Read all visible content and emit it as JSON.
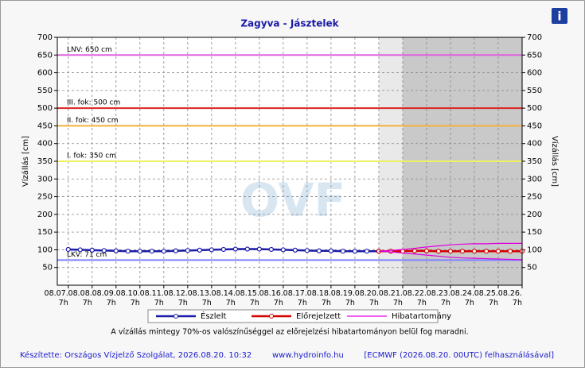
{
  "chart_data": {
    "type": "line",
    "title": "Zagyva - Jásztelek",
    "ylabel": "Vízállás [cm]",
    "y2label": "Vízállás [cm]",
    "watermark": "OVF",
    "x": [
      "08.07. 7h",
      "08.07. 19h",
      "08.08. 7h",
      "08.08. 19h",
      "08.09. 7h",
      "08.09. 19h",
      "08.10. 7h",
      "08.10. 19h",
      "08.11. 7h",
      "08.11. 19h",
      "08.12. 7h",
      "08.12. 19h",
      "08.13. 7h",
      "08.13. 19h",
      "08.14. 7h",
      "08.14. 19h",
      "08.15. 7h",
      "08.15. 19h",
      "08.16. 7h",
      "08.16. 19h",
      "08.17. 7h",
      "08.17. 19h",
      "08.18. 7h",
      "08.18. 19h",
      "08.19. 7h",
      "08.19. 19h",
      "08.20. 7h",
      "08.20. 19h",
      "08.21. 7h",
      "08.21. 19h",
      "08.22. 7h",
      "08.22. 19h",
      "08.23. 7h",
      "08.23. 19h",
      "08.24. 7h",
      "08.24. 19h",
      "08.25. 7h",
      "08.25. 19h",
      "08.26. 7h"
    ],
    "series": [
      {
        "name": "Észlelt",
        "color": "#1c1ca8",
        "markers": true,
        "values": [
          101,
          100,
          99,
          98,
          97,
          96,
          96,
          96,
          96,
          97,
          98,
          99,
          100,
          101,
          102,
          102,
          102,
          101,
          100,
          99,
          98,
          97,
          97,
          96,
          96,
          96,
          96,
          null,
          null,
          null,
          null,
          null,
          null,
          null,
          null,
          null,
          null,
          null,
          null
        ]
      },
      {
        "name": "Előrejelzett",
        "color": "#d40000",
        "markers": true,
        "values": [
          null,
          null,
          null,
          null,
          null,
          null,
          null,
          null,
          null,
          null,
          null,
          null,
          null,
          null,
          null,
          null,
          null,
          null,
          null,
          null,
          null,
          null,
          null,
          null,
          null,
          null,
          96,
          96,
          96,
          97,
          97,
          96,
          96,
          96,
          96,
          96,
          96,
          96,
          96
        ]
      },
      {
        "name": "Hibatartomány",
        "color": "#e000e0",
        "markers": false,
        "values": [
          null,
          null,
          null,
          null,
          null,
          null,
          null,
          null,
          null,
          null,
          null,
          null,
          null,
          null,
          null,
          null,
          null,
          null,
          null,
          null,
          null,
          null,
          null,
          null,
          null,
          null,
          96,
          98,
          101,
          104,
          108,
          111,
          114,
          116,
          117,
          117,
          118,
          118,
          118
        ],
        "lower": [
          null,
          null,
          null,
          null,
          null,
          null,
          null,
          null,
          null,
          null,
          null,
          null,
          null,
          null,
          null,
          null,
          null,
          null,
          null,
          null,
          null,
          null,
          null,
          null,
          null,
          null,
          96,
          94,
          91,
          88,
          85,
          82,
          79,
          77,
          76,
          75,
          74,
          73,
          72
        ]
      }
    ],
    "xlim": [
      "08.06. 20h",
      "08.26. 7h"
    ],
    "xticks": [
      "08.07. 7h",
      "08.08. 7h",
      "08.09. 7h",
      "08.10. 7h",
      "08.11. 7h",
      "08.12. 7h",
      "08.13. 7h",
      "08.14. 7h",
      "08.15. 7h",
      "08.16. 7h",
      "08.17. 7h",
      "08.18. 7h",
      "08.19. 7h",
      "08.20. 7h",
      "08.21. 7h",
      "08.22. 7h",
      "08.23. 7h",
      "08.24. 7h",
      "08.25. 7h",
      "08.26. 7h"
    ],
    "ylim": [
      0,
      700
    ],
    "yticks": [
      50,
      100,
      150,
      200,
      250,
      300,
      350,
      400,
      450,
      500,
      550,
      600,
      650,
      700
    ],
    "grid": true,
    "shaded_regions": [
      {
        "from": "08.20. 7h",
        "to": "08.21. 7h",
        "color": "#e9e9e9"
      },
      {
        "from": "08.21. 7h",
        "to": "08.26. 7h",
        "color": "#c9c9c9"
      }
    ],
    "thresholds": [
      {
        "label": "LNV: 650 cm",
        "value": 650,
        "color": "#e060e0"
      },
      {
        "label": "III. fok: 500 cm",
        "value": 500,
        "color": "#dd2222"
      },
      {
        "label": "II. fok: 450 cm",
        "value": 450,
        "color": "#f5b040"
      },
      {
        "label": "I. fok: 350 cm",
        "value": 350,
        "color": "#f0f060"
      },
      {
        "label": "LKV: 71 cm",
        "value": 71,
        "color": "#8080ff"
      }
    ],
    "note": "A vízállás mintegy 70%-os valószínűséggel az előrejelzési hibatartományon belül fog maradni.",
    "footer": [
      "Készítette: Országos Vízjelző Szolgálat, 2026.08.20. 10:32",
      "www.hydroinfo.hu",
      "[ECMWF (2026.08.20. 00UTC) felhasználásával]"
    ]
  }
}
